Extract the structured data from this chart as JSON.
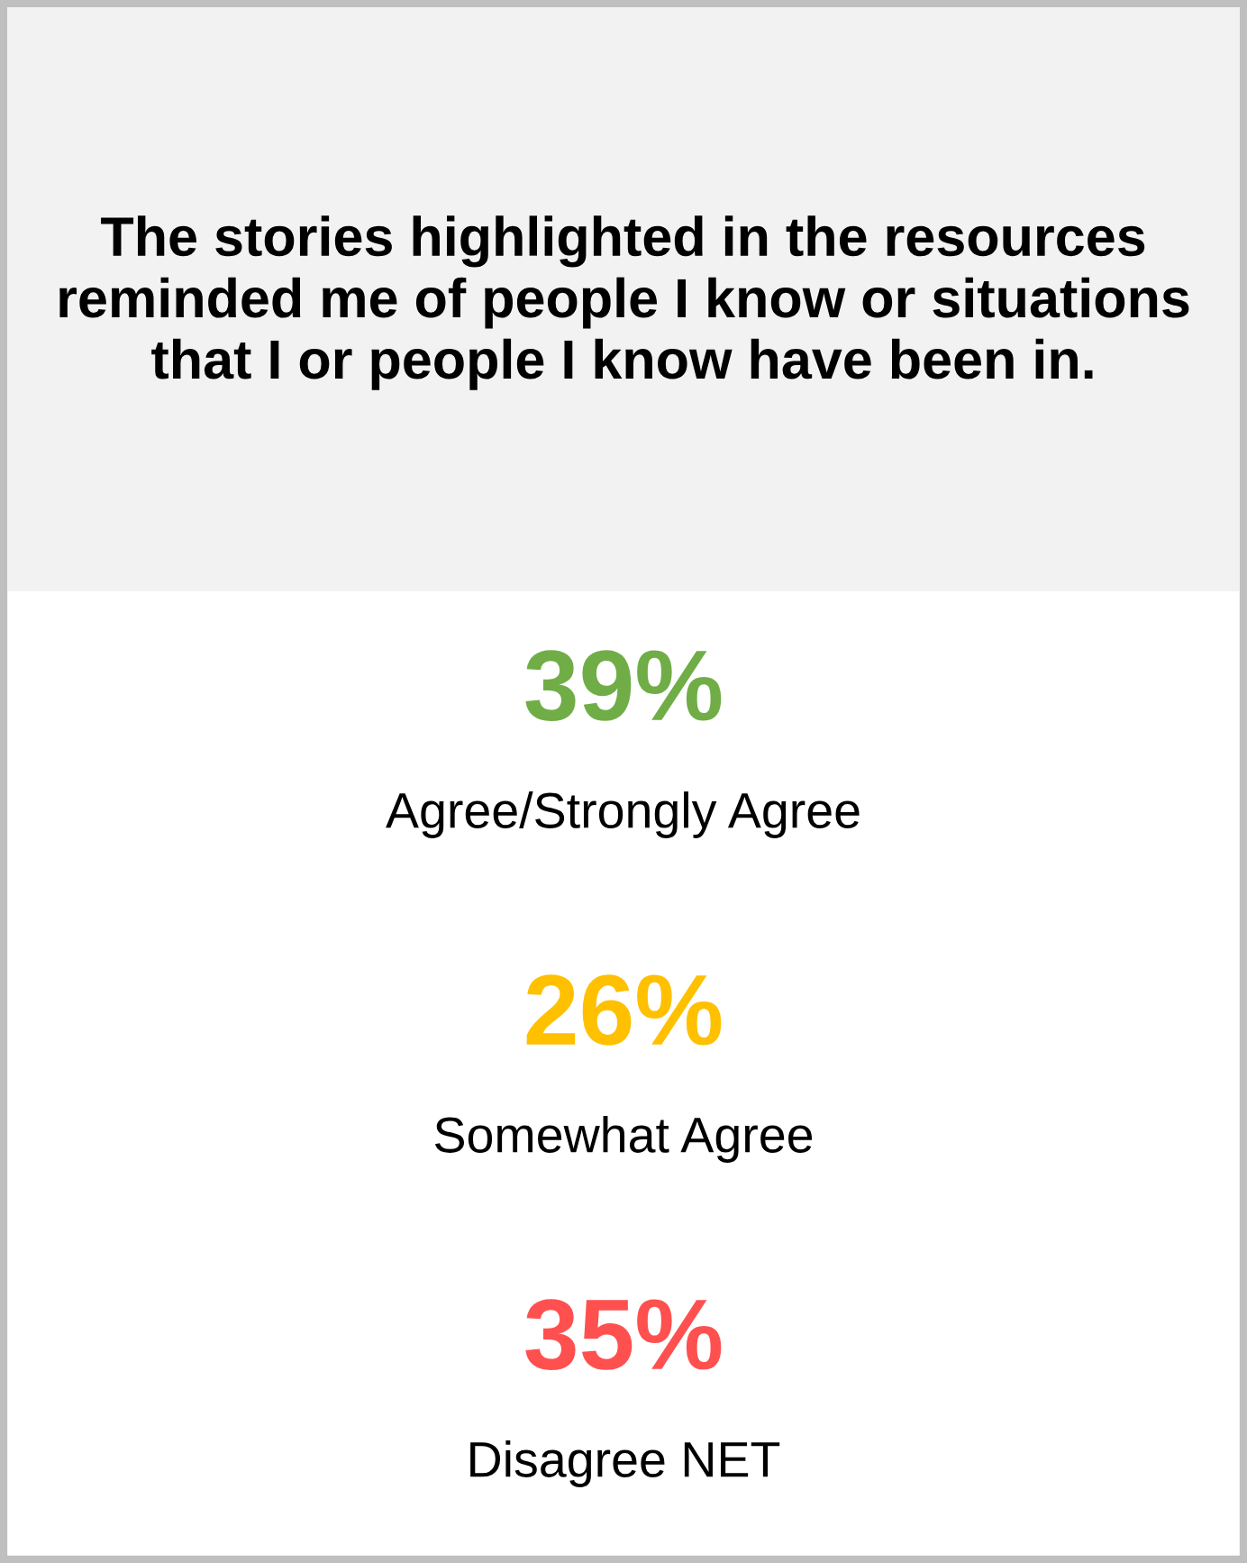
{
  "chart_data": {
    "type": "other",
    "title": "The stories highlighted in the resources reminded me of people I know or situations that I or people I know have been in.",
    "categories": [
      "Agree/Strongly Agree",
      "Somewhat Agree",
      "Disagree NET"
    ],
    "values": [
      39,
      26,
      35
    ],
    "value_labels": [
      "39%",
      "26%",
      "35%"
    ],
    "colors": [
      "#70ad47",
      "#ffc000",
      "#ff5050"
    ]
  }
}
